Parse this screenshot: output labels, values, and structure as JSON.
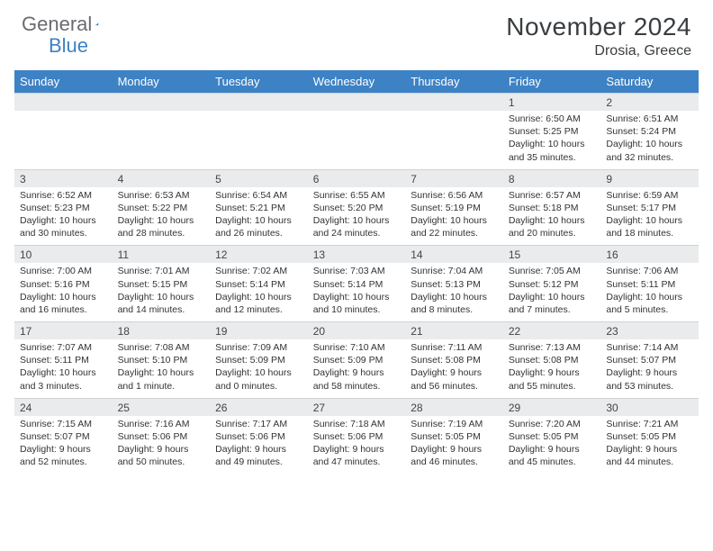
{
  "brand": {
    "part1": "General",
    "part2": "Blue",
    "triangle_color": "#2f6db6"
  },
  "title": "November 2024",
  "location": "Drosia, Greece",
  "colors": {
    "header_bg": "#3d82c4",
    "header_text": "#ffffff",
    "daynum_bg": "#e9ebec",
    "body_text": "#333333",
    "title_text": "#3a3d40"
  },
  "day_names": [
    "Sunday",
    "Monday",
    "Tuesday",
    "Wednesday",
    "Thursday",
    "Friday",
    "Saturday"
  ],
  "weeks": [
    [
      null,
      null,
      null,
      null,
      null,
      {
        "n": "1",
        "sr": "Sunrise: 6:50 AM",
        "ss": "Sunset: 5:25 PM",
        "dl": "Daylight: 10 hours and 35 minutes."
      },
      {
        "n": "2",
        "sr": "Sunrise: 6:51 AM",
        "ss": "Sunset: 5:24 PM",
        "dl": "Daylight: 10 hours and 32 minutes."
      }
    ],
    [
      {
        "n": "3",
        "sr": "Sunrise: 6:52 AM",
        "ss": "Sunset: 5:23 PM",
        "dl": "Daylight: 10 hours and 30 minutes."
      },
      {
        "n": "4",
        "sr": "Sunrise: 6:53 AM",
        "ss": "Sunset: 5:22 PM",
        "dl": "Daylight: 10 hours and 28 minutes."
      },
      {
        "n": "5",
        "sr": "Sunrise: 6:54 AM",
        "ss": "Sunset: 5:21 PM",
        "dl": "Daylight: 10 hours and 26 minutes."
      },
      {
        "n": "6",
        "sr": "Sunrise: 6:55 AM",
        "ss": "Sunset: 5:20 PM",
        "dl": "Daylight: 10 hours and 24 minutes."
      },
      {
        "n": "7",
        "sr": "Sunrise: 6:56 AM",
        "ss": "Sunset: 5:19 PM",
        "dl": "Daylight: 10 hours and 22 minutes."
      },
      {
        "n": "8",
        "sr": "Sunrise: 6:57 AM",
        "ss": "Sunset: 5:18 PM",
        "dl": "Daylight: 10 hours and 20 minutes."
      },
      {
        "n": "9",
        "sr": "Sunrise: 6:59 AM",
        "ss": "Sunset: 5:17 PM",
        "dl": "Daylight: 10 hours and 18 minutes."
      }
    ],
    [
      {
        "n": "10",
        "sr": "Sunrise: 7:00 AM",
        "ss": "Sunset: 5:16 PM",
        "dl": "Daylight: 10 hours and 16 minutes."
      },
      {
        "n": "11",
        "sr": "Sunrise: 7:01 AM",
        "ss": "Sunset: 5:15 PM",
        "dl": "Daylight: 10 hours and 14 minutes."
      },
      {
        "n": "12",
        "sr": "Sunrise: 7:02 AM",
        "ss": "Sunset: 5:14 PM",
        "dl": "Daylight: 10 hours and 12 minutes."
      },
      {
        "n": "13",
        "sr": "Sunrise: 7:03 AM",
        "ss": "Sunset: 5:14 PM",
        "dl": "Daylight: 10 hours and 10 minutes."
      },
      {
        "n": "14",
        "sr": "Sunrise: 7:04 AM",
        "ss": "Sunset: 5:13 PM",
        "dl": "Daylight: 10 hours and 8 minutes."
      },
      {
        "n": "15",
        "sr": "Sunrise: 7:05 AM",
        "ss": "Sunset: 5:12 PM",
        "dl": "Daylight: 10 hours and 7 minutes."
      },
      {
        "n": "16",
        "sr": "Sunrise: 7:06 AM",
        "ss": "Sunset: 5:11 PM",
        "dl": "Daylight: 10 hours and 5 minutes."
      }
    ],
    [
      {
        "n": "17",
        "sr": "Sunrise: 7:07 AM",
        "ss": "Sunset: 5:11 PM",
        "dl": "Daylight: 10 hours and 3 minutes."
      },
      {
        "n": "18",
        "sr": "Sunrise: 7:08 AM",
        "ss": "Sunset: 5:10 PM",
        "dl": "Daylight: 10 hours and 1 minute."
      },
      {
        "n": "19",
        "sr": "Sunrise: 7:09 AM",
        "ss": "Sunset: 5:09 PM",
        "dl": "Daylight: 10 hours and 0 minutes."
      },
      {
        "n": "20",
        "sr": "Sunrise: 7:10 AM",
        "ss": "Sunset: 5:09 PM",
        "dl": "Daylight: 9 hours and 58 minutes."
      },
      {
        "n": "21",
        "sr": "Sunrise: 7:11 AM",
        "ss": "Sunset: 5:08 PM",
        "dl": "Daylight: 9 hours and 56 minutes."
      },
      {
        "n": "22",
        "sr": "Sunrise: 7:13 AM",
        "ss": "Sunset: 5:08 PM",
        "dl": "Daylight: 9 hours and 55 minutes."
      },
      {
        "n": "23",
        "sr": "Sunrise: 7:14 AM",
        "ss": "Sunset: 5:07 PM",
        "dl": "Daylight: 9 hours and 53 minutes."
      }
    ],
    [
      {
        "n": "24",
        "sr": "Sunrise: 7:15 AM",
        "ss": "Sunset: 5:07 PM",
        "dl": "Daylight: 9 hours and 52 minutes."
      },
      {
        "n": "25",
        "sr": "Sunrise: 7:16 AM",
        "ss": "Sunset: 5:06 PM",
        "dl": "Daylight: 9 hours and 50 minutes."
      },
      {
        "n": "26",
        "sr": "Sunrise: 7:17 AM",
        "ss": "Sunset: 5:06 PM",
        "dl": "Daylight: 9 hours and 49 minutes."
      },
      {
        "n": "27",
        "sr": "Sunrise: 7:18 AM",
        "ss": "Sunset: 5:06 PM",
        "dl": "Daylight: 9 hours and 47 minutes."
      },
      {
        "n": "28",
        "sr": "Sunrise: 7:19 AM",
        "ss": "Sunset: 5:05 PM",
        "dl": "Daylight: 9 hours and 46 minutes."
      },
      {
        "n": "29",
        "sr": "Sunrise: 7:20 AM",
        "ss": "Sunset: 5:05 PM",
        "dl": "Daylight: 9 hours and 45 minutes."
      },
      {
        "n": "30",
        "sr": "Sunrise: 7:21 AM",
        "ss": "Sunset: 5:05 PM",
        "dl": "Daylight: 9 hours and 44 minutes."
      }
    ]
  ]
}
